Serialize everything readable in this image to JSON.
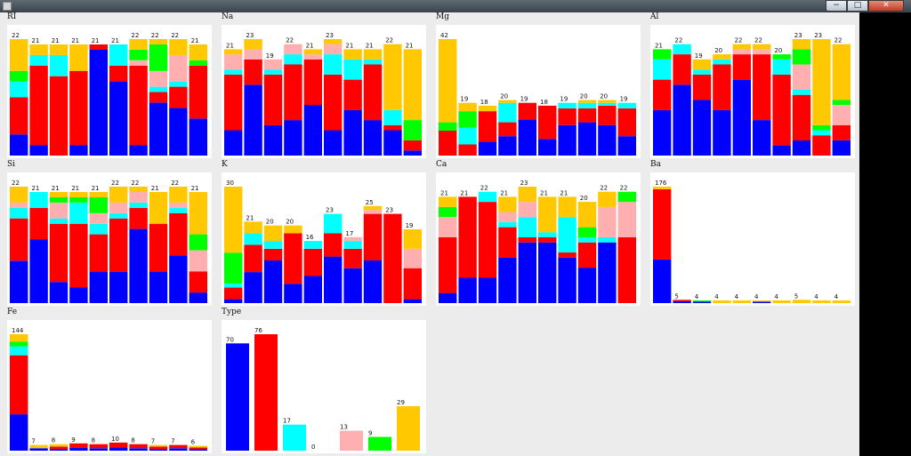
{
  "window": {
    "min_glyph": "−",
    "max_glyph": "□",
    "close_glyph": "✕"
  },
  "colors": {
    "c0": "#0000ff",
    "c1": "#ff0000",
    "c2": "#00ffff",
    "c3": "#ffafaf",
    "c4": "#00ff00",
    "c5": "#ffc800"
  },
  "chart_data": [
    {
      "title": "RI",
      "type": "bar",
      "stacked": true,
      "ymax": 22,
      "totals": [
        22,
        21,
        21,
        21,
        21,
        21,
        22,
        22,
        22,
        21
      ],
      "stacks": [
        [
          4,
          7,
          3,
          0,
          2,
          6
        ],
        [
          2,
          15,
          2,
          0,
          0,
          2
        ],
        [
          0,
          15,
          4,
          0,
          0,
          2
        ],
        [
          2,
          14,
          0,
          0,
          0,
          5
        ],
        [
          20,
          1,
          0,
          0,
          0,
          0
        ],
        [
          14,
          3,
          4,
          0,
          0,
          0
        ],
        [
          2,
          15,
          0,
          1,
          2,
          2
        ],
        [
          10,
          2,
          1,
          3,
          5,
          1
        ],
        [
          9,
          4,
          1,
          5,
          0,
          3
        ],
        [
          7,
          10,
          0,
          0,
          1,
          3
        ]
      ]
    },
    {
      "title": "Na",
      "type": "bar",
      "stacked": true,
      "ymax": 23,
      "totals": [
        21,
        23,
        19,
        22,
        21,
        23,
        21,
        21,
        22,
        21
      ],
      "stacks": [
        [
          5,
          11,
          1,
          3,
          0,
          1
        ],
        [
          14,
          5,
          0,
          2,
          0,
          2
        ],
        [
          6,
          10,
          1,
          2,
          0,
          0
        ],
        [
          7,
          11,
          2,
          2,
          0,
          0
        ],
        [
          10,
          9,
          0,
          1,
          0,
          1
        ],
        [
          5,
          11,
          4,
          2,
          0,
          1
        ],
        [
          9,
          6,
          4,
          0,
          0,
          2
        ],
        [
          7,
          11,
          1,
          0,
          0,
          2
        ],
        [
          5,
          1,
          3,
          0,
          0,
          13
        ],
        [
          1,
          2,
          0,
          0,
          4,
          14
        ]
      ]
    },
    {
      "title": "Mg",
      "type": "bar",
      "stacked": true,
      "ymax": 42,
      "totals": [
        42,
        19,
        18,
        20,
        19,
        18,
        19,
        20,
        20,
        19
      ],
      "stacks": [
        [
          0,
          9,
          0,
          0,
          3,
          30
        ],
        [
          0,
          4,
          6,
          0,
          6,
          3
        ],
        [
          5,
          11,
          0,
          0,
          0,
          2
        ],
        [
          7,
          5,
          7,
          0,
          0,
          1
        ],
        [
          13,
          6,
          0,
          0,
          0,
          0
        ],
        [
          6,
          12,
          0,
          0,
          0,
          0
        ],
        [
          11,
          6,
          2,
          0,
          0,
          0
        ],
        [
          12,
          5,
          2,
          0,
          0,
          1
        ],
        [
          11,
          7,
          1,
          0,
          0,
          1
        ],
        [
          7,
          10,
          2,
          0,
          0,
          0
        ]
      ]
    },
    {
      "title": "Al",
      "type": "bar",
      "stacked": true,
      "ymax": 23,
      "totals": [
        21,
        22,
        19,
        20,
        22,
        22,
        20,
        23,
        23,
        22
      ],
      "stacks": [
        [
          9,
          6,
          4,
          0,
          2,
          0
        ],
        [
          14,
          6,
          2,
          0,
          0,
          0
        ],
        [
          11,
          5,
          1,
          0,
          0,
          2
        ],
        [
          9,
          9,
          1,
          0,
          0,
          1
        ],
        [
          15,
          5,
          0,
          1,
          0,
          1
        ],
        [
          7,
          13,
          0,
          1,
          0,
          1
        ],
        [
          2,
          14,
          3,
          0,
          1,
          0
        ],
        [
          3,
          9,
          1,
          5,
          3,
          2
        ],
        [
          0,
          4,
          1,
          0,
          1,
          17
        ],
        [
          3,
          3,
          0,
          4,
          1,
          11
        ]
      ]
    },
    {
      "title": "Si",
      "type": "bar",
      "stacked": true,
      "ymax": 22,
      "totals": [
        22,
        21,
        21,
        21,
        21,
        22,
        22,
        21,
        22,
        21
      ],
      "stacks": [
        [
          8,
          8,
          2,
          1,
          0,
          3
        ],
        [
          12,
          6,
          3,
          0,
          0,
          0
        ],
        [
          4,
          11,
          1,
          3,
          1,
          1
        ],
        [
          3,
          12,
          4,
          0,
          1,
          1
        ],
        [
          6,
          7,
          2,
          2,
          3,
          1
        ],
        [
          6,
          10,
          1,
          2,
          0,
          3
        ],
        [
          14,
          4,
          1,
          2,
          0,
          1
        ],
        [
          6,
          9,
          0,
          0,
          0,
          6
        ],
        [
          9,
          8,
          1,
          1,
          0,
          3
        ],
        [
          2,
          4,
          0,
          4,
          3,
          8
        ]
      ]
    },
    {
      "title": "K",
      "type": "bar",
      "stacked": true,
      "ymax": 30,
      "totals": [
        30,
        21,
        20,
        20,
        16,
        23,
        17,
        25,
        23,
        19
      ],
      "stacks": [
        [
          1,
          3,
          1,
          0,
          8,
          17
        ],
        [
          8,
          7,
          3,
          0,
          0,
          3
        ],
        [
          11,
          3,
          2,
          0,
          0,
          4
        ],
        [
          5,
          13,
          0,
          0,
          0,
          2
        ],
        [
          7,
          7,
          2,
          0,
          0,
          0
        ],
        [
          12,
          6,
          5,
          0,
          0,
          0
        ],
        [
          9,
          5,
          2,
          1,
          0,
          0
        ],
        [
          11,
          12,
          0,
          1,
          0,
          1
        ],
        [
          0,
          23,
          0,
          0,
          0,
          0
        ],
        [
          1,
          8,
          0,
          5,
          0,
          5
        ]
      ]
    },
    {
      "title": "Ca",
      "type": "bar",
      "stacked": true,
      "ymax": 23,
      "totals": [
        21,
        21,
        22,
        21,
        23,
        21,
        21,
        20,
        22,
        22
      ],
      "stacks": [
        [
          2,
          11,
          0,
          4,
          2,
          2
        ],
        [
          5,
          16,
          0,
          0,
          0,
          0
        ],
        [
          5,
          15,
          2,
          0,
          0,
          0
        ],
        [
          9,
          6,
          1,
          2,
          0,
          3
        ],
        [
          12,
          1,
          4,
          3,
          0,
          3
        ],
        [
          12,
          1,
          1,
          0,
          0,
          7
        ],
        [
          9,
          1,
          7,
          0,
          0,
          4
        ],
        [
          7,
          5,
          1,
          0,
          2,
          5
        ],
        [
          12,
          0,
          1,
          6,
          0,
          3
        ],
        [
          0,
          13,
          0,
          7,
          2,
          0
        ]
      ]
    },
    {
      "title": "Ba",
      "type": "bar",
      "stacked": true,
      "ymax": 176,
      "totals": [
        176,
        5,
        4,
        4,
        4,
        4,
        4,
        5,
        4,
        4
      ],
      "stacks": [
        [
          66,
          106,
          0,
          0,
          0,
          4
        ],
        [
          3,
          2,
          0,
          0,
          0,
          0
        ],
        [
          2,
          0,
          0,
          0,
          2,
          0
        ],
        [
          0,
          0,
          0,
          0,
          0,
          4
        ],
        [
          0,
          0,
          0,
          0,
          0,
          4
        ],
        [
          2,
          0,
          0,
          0,
          0,
          2
        ],
        [
          0,
          0,
          0,
          0,
          0,
          4
        ],
        [
          0,
          0,
          0,
          0,
          0,
          5
        ],
        [
          0,
          0,
          0,
          0,
          0,
          4
        ],
        [
          0,
          0,
          0,
          0,
          0,
          4
        ]
      ]
    },
    {
      "title": "Fe",
      "type": "bar",
      "stacked": true,
      "ymax": 144,
      "totals": [
        144,
        7,
        8,
        9,
        8,
        10,
        8,
        7,
        7,
        6
      ],
      "stacks": [
        [
          45,
          73,
          11,
          0,
          6,
          9
        ],
        [
          3,
          0,
          0,
          0,
          0,
          4
        ],
        [
          2,
          3,
          0,
          0,
          0,
          3
        ],
        [
          4,
          5,
          0,
          0,
          0,
          0
        ],
        [
          3,
          5,
          0,
          0,
          0,
          0
        ],
        [
          4,
          6,
          0,
          0,
          0,
          0
        ],
        [
          3,
          5,
          0,
          0,
          0,
          0
        ],
        [
          2,
          3,
          0,
          0,
          0,
          2
        ],
        [
          3,
          4,
          0,
          0,
          0,
          0
        ],
        [
          2,
          2,
          0,
          0,
          0,
          2
        ]
      ]
    },
    {
      "title": "Type",
      "type": "bar",
      "stacked": false,
      "ymax": 76,
      "totals": [
        70,
        76,
        17,
        0,
        13,
        9,
        29
      ],
      "bar_colors": [
        "#0000ff",
        "#ff0000",
        "#00ffff",
        "#ffc800",
        "#ffafaf",
        "#00ff00",
        "#ffc800"
      ]
    }
  ]
}
